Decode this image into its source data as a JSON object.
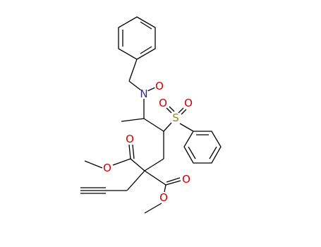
{
  "atoms": [
    {
      "label": "N",
      "color": "#2e2e8a"
    },
    {
      "label": "O",
      "color": "#cc0000"
    },
    {
      "label": "S",
      "color": "#8a8a1a"
    },
    {
      "label": "O",
      "color": "#cc0000"
    },
    {
      "label": "O",
      "color": "#cc0000"
    },
    {
      "label": "O",
      "color": "#cc0000"
    },
    {
      "label": "O",
      "color": "#cc0000"
    },
    {
      "label": "O",
      "color": "#cc0000"
    },
    {
      "label": "O",
      "color": "#cc0000"
    }
  ]
}
